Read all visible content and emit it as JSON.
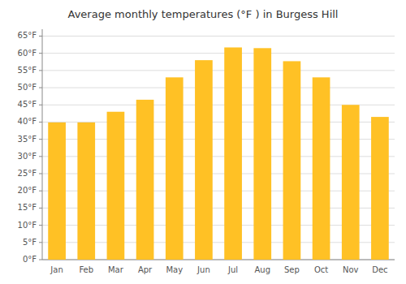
{
  "chart_data": {
    "type": "bar",
    "title": "Average monthly temperatures (°F ) in Burgess Hill",
    "categories": [
      "Jan",
      "Feb",
      "Mar",
      "Apr",
      "May",
      "Jun",
      "Jul",
      "Aug",
      "Sep",
      "Oct",
      "Nov",
      "Dec"
    ],
    "values": [
      39.9,
      39.9,
      43.0,
      46.5,
      53.0,
      58.0,
      61.7,
      61.5,
      57.7,
      53.0,
      45.0,
      41.5
    ],
    "color": "#FFC125",
    "ylim": [
      0,
      67
    ],
    "yticks": [
      {
        "value": 0,
        "label": "0°F"
      },
      {
        "value": 5,
        "label": "5°F"
      },
      {
        "value": 10,
        "label": "10°F"
      },
      {
        "value": 15,
        "label": "15°F"
      },
      {
        "value": 20,
        "label": "20°F"
      },
      {
        "value": 25,
        "label": "25°F"
      },
      {
        "value": 30,
        "label": "30°F"
      },
      {
        "value": 35,
        "label": "35°F"
      },
      {
        "value": 40,
        "label": "40°F"
      },
      {
        "value": 45,
        "label": "45°F"
      },
      {
        "value": 50,
        "label": "50°F"
      },
      {
        "value": 55,
        "label": "55°F"
      },
      {
        "value": 60,
        "label": "60°F"
      },
      {
        "value": 65,
        "label": "65°F"
      }
    ],
    "grid": true
  }
}
